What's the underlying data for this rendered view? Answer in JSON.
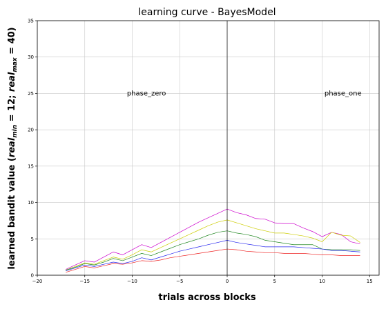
{
  "chart_data": {
    "type": "line",
    "title": "learning curve - BayesModel",
    "xlabel": "trials across blocks",
    "ylabel": "learned bandit value (real_min = 12; real_max = 40)",
    "ylabel_prefix": "learned bandit value (",
    "ylabel_math1": "real",
    "ylabel_sub1": "min",
    "ylabel_mid": " = 12; ",
    "ylabel_math2": "real",
    "ylabel_sub2": "max",
    "ylabel_suffix": " = 40)",
    "xlim": [
      -20,
      16
    ],
    "ylim": [
      0,
      35
    ],
    "xticks": [
      -20,
      -15,
      -10,
      -5,
      0,
      5,
      10,
      15
    ],
    "yticks": [
      0,
      5,
      10,
      15,
      20,
      25,
      30,
      35
    ],
    "grid": true,
    "vline_x": 0,
    "annotations": [
      {
        "text": "phase_zero",
        "x": -8.5,
        "y": 25
      },
      {
        "text": "phase_one",
        "x": 12.2,
        "y": 25
      }
    ],
    "x": [
      -17,
      -16,
      -15,
      -14,
      -13,
      -12,
      -11,
      -10,
      -9,
      -8,
      -7,
      -6,
      -5,
      -4,
      -3,
      -2,
      -1,
      0,
      1,
      2,
      3,
      4,
      5,
      6,
      7,
      8,
      9,
      10,
      11,
      12,
      13,
      14
    ],
    "series": [
      {
        "color": "#cc00cc",
        "values": [
          0.8,
          1.4,
          2.0,
          1.8,
          2.5,
          3.2,
          2.8,
          3.5,
          4.2,
          3.8,
          4.5,
          5.2,
          5.9,
          6.6,
          7.3,
          7.9,
          8.5,
          9.1,
          8.6,
          8.3,
          7.8,
          7.7,
          7.2,
          7.1,
          7.1,
          6.5,
          6.0,
          5.3,
          5.9,
          5.6,
          4.6,
          4.3
        ]
      },
      {
        "color": "#cccc00",
        "values": [
          0.7,
          1.2,
          1.7,
          1.5,
          2.0,
          2.5,
          2.2,
          2.8,
          3.5,
          3.2,
          3.8,
          4.4,
          5.0,
          5.6,
          6.2,
          6.8,
          7.3,
          7.6,
          7.2,
          6.8,
          6.4,
          6.1,
          5.8,
          5.8,
          5.6,
          5.4,
          5.1,
          4.6,
          5.9,
          5.5,
          5.4,
          4.5
        ]
      },
      {
        "color": "#228822",
        "values": [
          0.7,
          1.1,
          1.6,
          1.4,
          1.8,
          2.3,
          2.0,
          2.5,
          3.0,
          2.7,
          3.2,
          3.7,
          4.2,
          4.6,
          5.0,
          5.5,
          5.9,
          6.1,
          5.8,
          5.6,
          5.3,
          4.8,
          4.6,
          4.4,
          4.2,
          4.2,
          4.2,
          3.6,
          3.5,
          3.5,
          3.5,
          3.4
        ]
      },
      {
        "color": "#2222ee",
        "values": [
          0.6,
          1.0,
          1.4,
          1.2,
          1.5,
          1.8,
          1.6,
          1.9,
          2.4,
          2.1,
          2.5,
          2.9,
          3.3,
          3.6,
          3.9,
          4.2,
          4.5,
          4.8,
          4.5,
          4.3,
          4.1,
          3.9,
          3.9,
          3.9,
          3.9,
          3.8,
          3.7,
          3.6,
          3.4,
          3.4,
          3.3,
          3.2
        ]
      },
      {
        "color": "#ee2222",
        "values": [
          0.4,
          0.8,
          1.2,
          1.0,
          1.3,
          1.6,
          1.5,
          1.7,
          2.0,
          1.9,
          2.1,
          2.4,
          2.6,
          2.8,
          3.0,
          3.2,
          3.4,
          3.6,
          3.5,
          3.3,
          3.2,
          3.1,
          3.1,
          3.0,
          3.0,
          3.0,
          2.9,
          2.8,
          2.8,
          2.7,
          2.7,
          2.7
        ]
      }
    ]
  }
}
